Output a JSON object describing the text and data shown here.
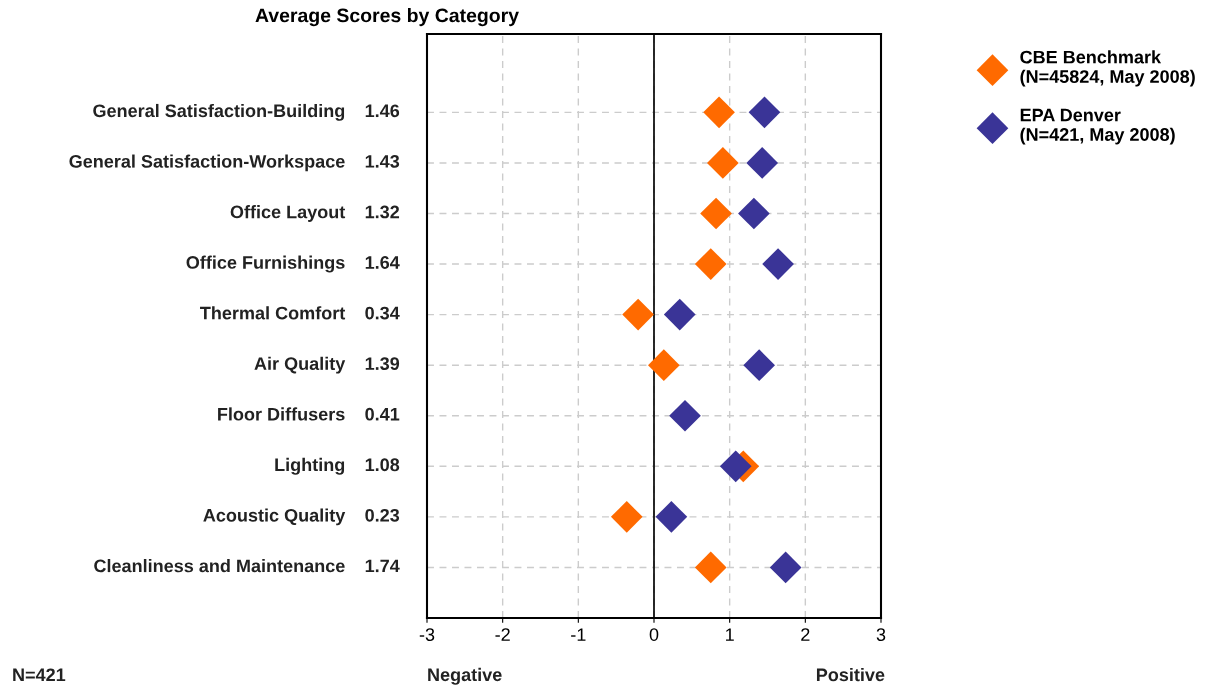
{
  "chart_data": {
    "type": "scatter",
    "title": "Average Scores by Category",
    "categories": [
      "General Satisfaction-Building",
      "General Satisfaction-Workspace",
      "Office Layout",
      "Office Furnishings",
      "Thermal Comfort",
      "Air Quality",
      "Floor Diffusers",
      "Lighting",
      "Acoustic Quality",
      "Cleanliness and Maintenance"
    ],
    "orientation": "horizontal",
    "series": [
      {
        "name": "CBE Benchmark\n(N=45824, May 2008)",
        "color": "#ff6a00",
        "values": [
          0.86,
          0.91,
          0.82,
          0.75,
          -0.21,
          0.13,
          null,
          1.18,
          -0.36,
          0.75
        ]
      },
      {
        "name": "EPA Denver\n(N=421, May 2008)",
        "color": "#3a3497",
        "values": [
          1.46,
          1.43,
          1.32,
          1.64,
          0.34,
          1.39,
          0.41,
          1.08,
          0.23,
          1.74
        ],
        "value_labels": [
          "1.46",
          "1.43",
          "1.32",
          "1.64",
          "0.34",
          "1.39",
          "0.41",
          "1.08",
          "0.23",
          "1.74"
        ]
      }
    ],
    "xlim": [
      -3,
      3
    ],
    "xticks": [
      -3,
      -2,
      -1,
      0,
      1,
      2,
      3
    ],
    "ref_lines": [
      {
        "axis": "x",
        "value": 0,
        "color": "#000000"
      }
    ],
    "annotations": [
      "Negative",
      "Positive",
      "N=421"
    ],
    "grid": true,
    "legend": "right",
    "marker": "diamond",
    "tick_labels": "x"
  }
}
